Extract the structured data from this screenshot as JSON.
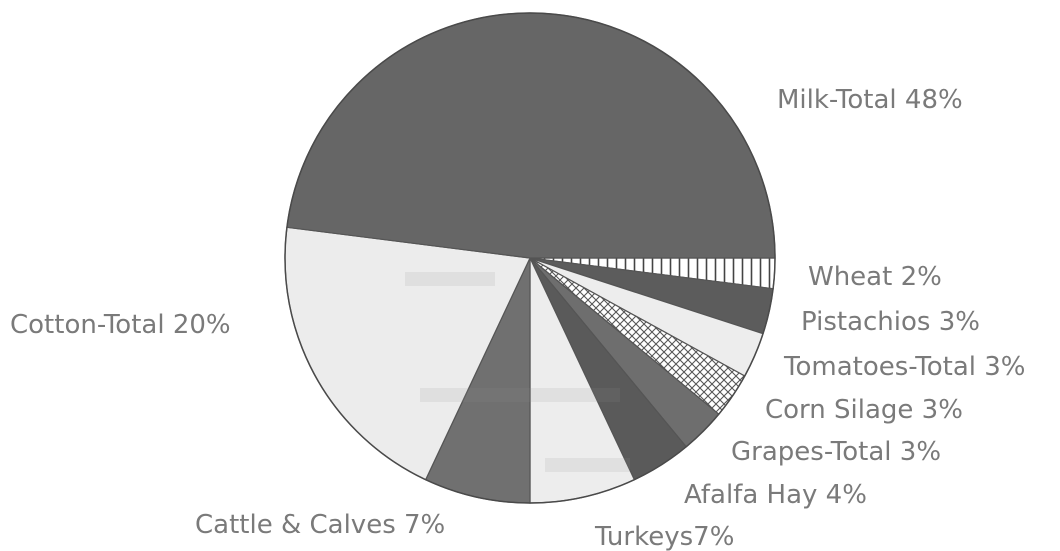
{
  "chart_data": {
    "type": "pie",
    "title": "",
    "start_angle_deg": 0,
    "direction": "clockwise",
    "slices": [
      {
        "name": "Wheat",
        "value": 2,
        "label": "Wheat 2%",
        "fill": "pattern-vlines"
      },
      {
        "name": "Pistachios",
        "value": 3,
        "label": "Pistachios 3%",
        "fill": "#5c5c5c"
      },
      {
        "name": "Tomatoes-Total",
        "value": 3,
        "label": "Tomatoes-Total 3%",
        "fill": "#ededed"
      },
      {
        "name": "Corn Silage",
        "value": 3,
        "label": "Corn Silage 3%",
        "fill": "pattern-crosshatch"
      },
      {
        "name": "Grapes-Total",
        "value": 3,
        "label": "Grapes-Total 3%",
        "fill": "#6e6e6e"
      },
      {
        "name": "Afalfa Hay",
        "value": 4,
        "label": "Afalfa Hay 4%",
        "fill": "#5a5a5a"
      },
      {
        "name": "Turkeys",
        "value": 7,
        "label": "Turkeys7%",
        "fill": "#ededed"
      },
      {
        "name": "Cattle & Calves",
        "value": 7,
        "label": "Cattle & Calves 7%",
        "fill": "#707070"
      },
      {
        "name": "Cotton-Total",
        "value": 20,
        "label": "Cotton-Total 20%",
        "fill": "#ececec"
      },
      {
        "name": "Milk-Total",
        "value": 48,
        "label": "Milk-Total 48%",
        "fill": "#666666"
      }
    ],
    "slice_stroke": "#555555",
    "label_color": "#7a7a7a"
  }
}
